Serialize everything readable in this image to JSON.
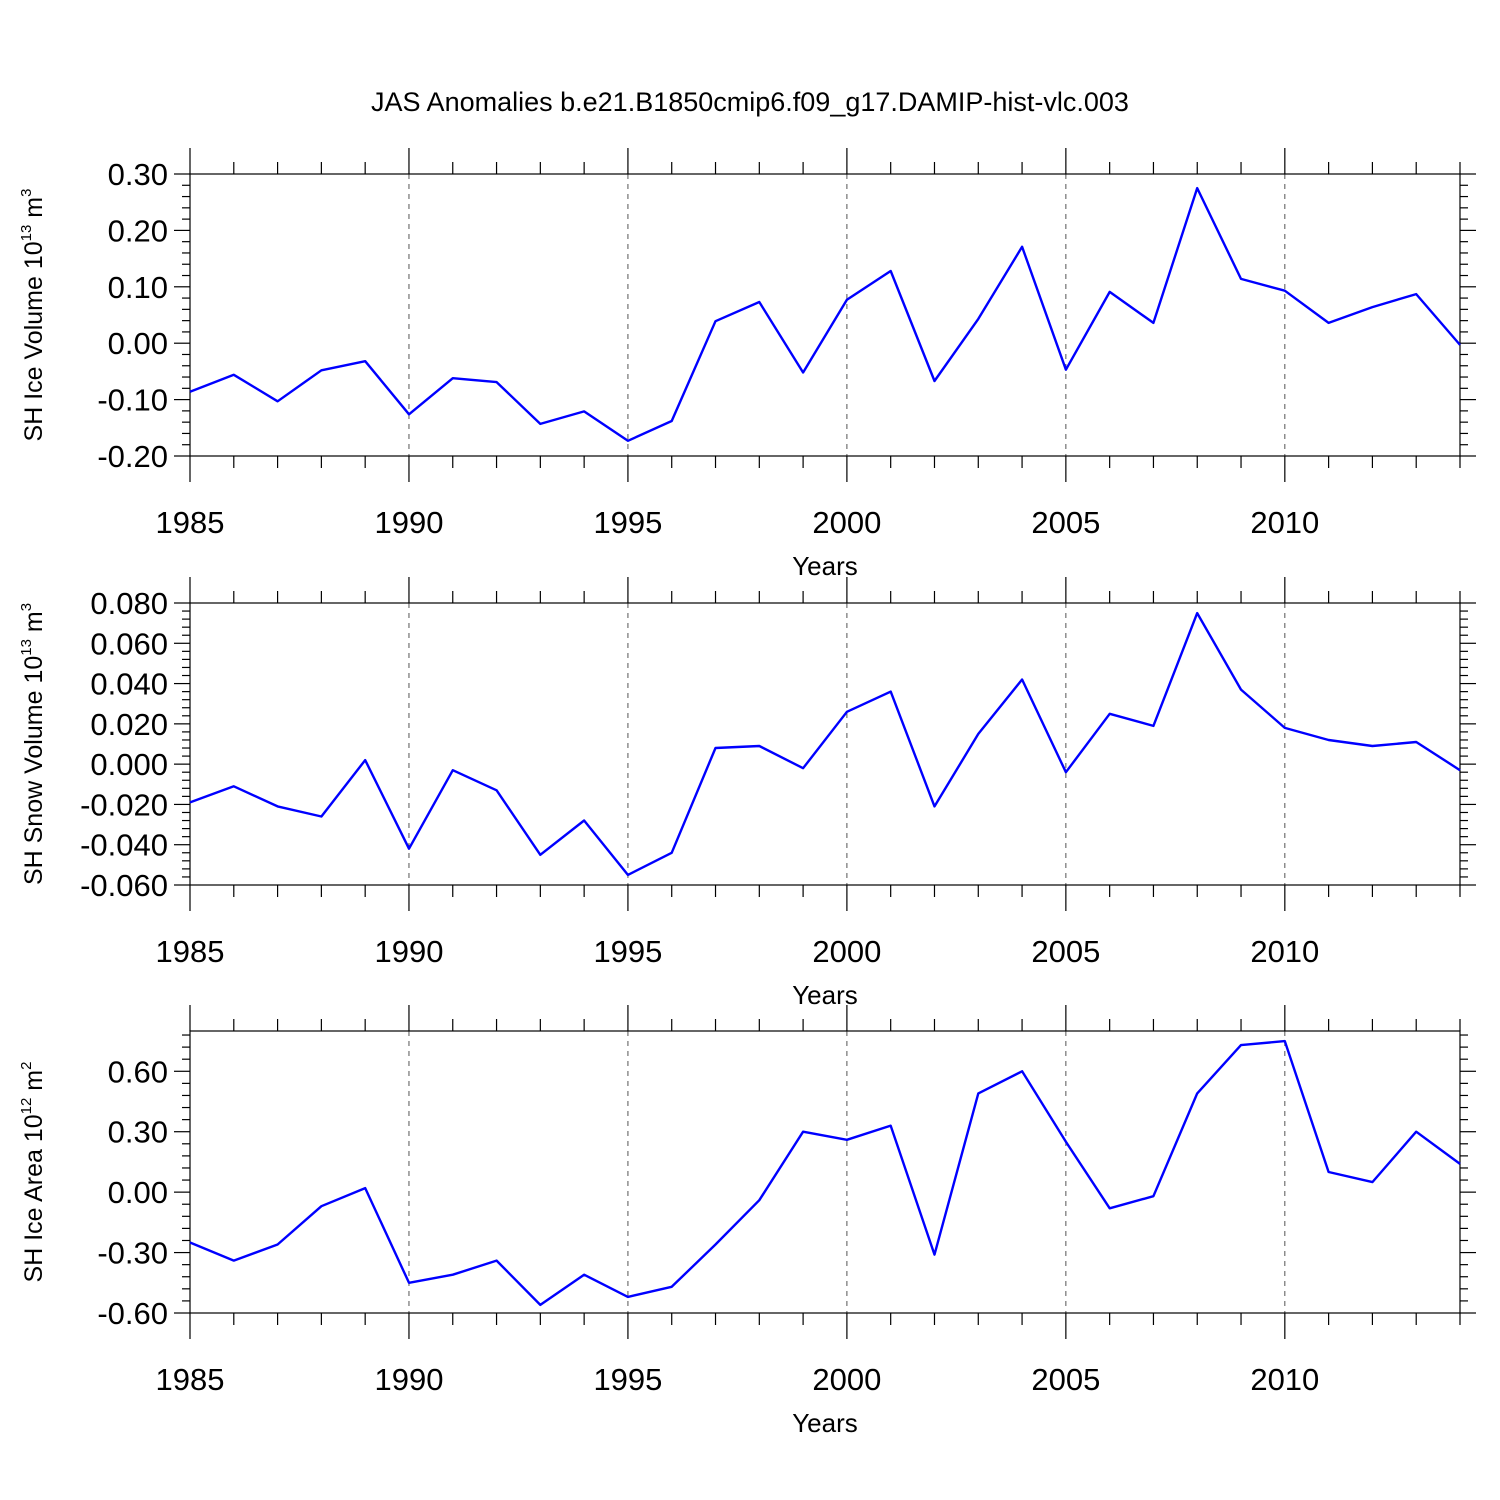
{
  "title": "JAS Anomalies b.e21.B1850cmip6.f09_g17.DAMIP-hist-vlc.003",
  "colors": {
    "line": "#0000ff",
    "axis": "#000000",
    "grid": "#555555"
  },
  "chart_data": [
    {
      "type": "line",
      "xlabel": "Years",
      "ylabel": {
        "text": "SH Ice Volume 10",
        "exp": "13",
        "unit": "m",
        "unit_exp": "3"
      },
      "xlim": [
        1985,
        2014
      ],
      "ylim": [
        -0.2,
        0.3
      ],
      "yticks": [
        -0.2,
        -0.1,
        0.0,
        0.1,
        0.2,
        0.3
      ],
      "ytick_labels": [
        "-0.20",
        "-0.10",
        "0.00",
        "0.10",
        "0.20",
        "0.30"
      ],
      "xticks": [
        1985,
        1990,
        1995,
        2000,
        2005,
        2010
      ],
      "xtick_labels": [
        "1985",
        "1990",
        "1995",
        "2000",
        "2005",
        "2010"
      ],
      "grid": "vertical dashed at major x ticks",
      "x": [
        1985,
        1986,
        1987,
        1988,
        1989,
        1990,
        1991,
        1992,
        1993,
        1994,
        1995,
        1996,
        1997,
        1998,
        1999,
        2000,
        2001,
        2002,
        2003,
        2004,
        2005,
        2006,
        2007,
        2008,
        2009,
        2010,
        2011,
        2012,
        2013,
        2014
      ],
      "values": [
        -0.086,
        -0.056,
        -0.103,
        -0.048,
        -0.032,
        -0.126,
        -0.062,
        -0.069,
        -0.143,
        -0.121,
        -0.173,
        -0.138,
        0.039,
        0.073,
        -0.052,
        0.077,
        0.128,
        -0.067,
        0.043,
        0.171,
        -0.047,
        0.091,
        0.036,
        0.275,
        0.114,
        0.093,
        0.036,
        0.064,
        0.087,
        -0.003
      ]
    },
    {
      "type": "line",
      "xlabel": "Years",
      "ylabel": {
        "text": "SH Snow Volume 10",
        "exp": "13",
        "unit": "m",
        "unit_exp": "3"
      },
      "xlim": [
        1985,
        2014
      ],
      "ylim": [
        -0.06,
        0.08
      ],
      "yticks": [
        -0.06,
        -0.04,
        -0.02,
        0.0,
        0.02,
        0.04,
        0.06,
        0.08
      ],
      "ytick_labels": [
        "-0.060",
        "-0.040",
        "-0.020",
        "0.000",
        "0.020",
        "0.040",
        "0.060",
        "0.080"
      ],
      "xticks": [
        1985,
        1990,
        1995,
        2000,
        2005,
        2010
      ],
      "xtick_labels": [
        "1985",
        "1990",
        "1995",
        "2000",
        "2005",
        "2010"
      ],
      "grid": "vertical dashed at major x ticks",
      "x": [
        1985,
        1986,
        1987,
        1988,
        1989,
        1990,
        1991,
        1992,
        1993,
        1994,
        1995,
        1996,
        1997,
        1998,
        1999,
        2000,
        2001,
        2002,
        2003,
        2004,
        2005,
        2006,
        2007,
        2008,
        2009,
        2010,
        2011,
        2012,
        2013,
        2014
      ],
      "values": [
        -0.019,
        -0.011,
        -0.021,
        -0.026,
        0.002,
        -0.042,
        -0.003,
        -0.013,
        -0.045,
        -0.028,
        -0.055,
        -0.044,
        0.008,
        0.009,
        -0.002,
        0.026,
        0.036,
        -0.021,
        0.015,
        0.042,
        -0.004,
        0.025,
        0.019,
        0.075,
        0.037,
        0.018,
        0.012,
        0.009,
        0.011,
        -0.003
      ]
    },
    {
      "type": "line",
      "xlabel": "Years",
      "ylabel": {
        "text": "SH Ice Area 10",
        "exp": "12",
        "unit": "m",
        "unit_exp": "2"
      },
      "xlim": [
        1985,
        2014
      ],
      "ylim": [
        -0.6,
        0.8
      ],
      "yticks": [
        -0.6,
        -0.3,
        0.0,
        0.3,
        0.6
      ],
      "ytick_labels": [
        "-0.60",
        "-0.30",
        "0.00",
        "0.30",
        "0.60"
      ],
      "xticks": [
        1985,
        1990,
        1995,
        2000,
        2005,
        2010
      ],
      "xtick_labels": [
        "1985",
        "1990",
        "1995",
        "2000",
        "2005",
        "2010"
      ],
      "grid": "vertical dashed at major x ticks",
      "x": [
        1985,
        1986,
        1987,
        1988,
        1989,
        1990,
        1991,
        1992,
        1993,
        1994,
        1995,
        1996,
        1997,
        1998,
        1999,
        2000,
        2001,
        2002,
        2003,
        2004,
        2005,
        2006,
        2007,
        2008,
        2009,
        2010,
        2011,
        2012,
        2013,
        2014
      ],
      "values": [
        -0.25,
        -0.34,
        -0.26,
        -0.07,
        0.02,
        -0.45,
        -0.41,
        -0.34,
        -0.56,
        -0.41,
        -0.52,
        -0.47,
        -0.26,
        -0.04,
        0.3,
        0.26,
        0.33,
        -0.31,
        0.49,
        0.6,
        0.25,
        -0.08,
        -0.02,
        0.49,
        0.73,
        0.75,
        0.1,
        0.05,
        0.3,
        0.14
      ]
    }
  ]
}
